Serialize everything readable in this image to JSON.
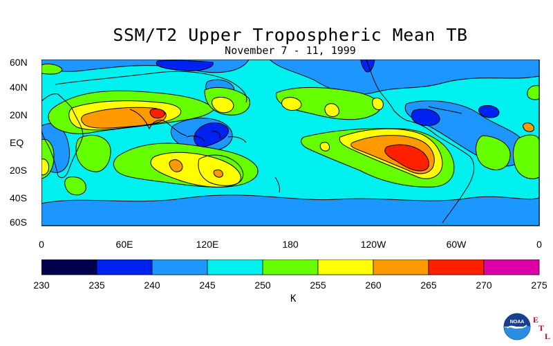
{
  "header": {
    "title": "SSM/T2 Upper Tropospheric Mean TB",
    "subtitle": "November 7 - 11, 1999"
  },
  "map": {
    "lat_labels": [
      "60N",
      "40N",
      "20N",
      "EQ",
      "20S",
      "40S",
      "60S"
    ],
    "lon_labels": [
      "0",
      "60E",
      "120E",
      "180",
      "120W",
      "60W",
      "0"
    ],
    "lat_range": [
      -60,
      60
    ],
    "lon_range": [
      0,
      360
    ]
  },
  "colorbar": {
    "unit": "K",
    "ticks": [
      "230",
      "235",
      "240",
      "245",
      "250",
      "255",
      "260",
      "265",
      "270",
      "275"
    ],
    "colors": [
      "#00004d",
      "#0022f0",
      "#1e96ff",
      "#00f0f0",
      "#66ff00",
      "#ffff00",
      "#ff9900",
      "#ff2000",
      "#e000a8"
    ]
  },
  "logo": {
    "text": "NOAA",
    "letters": [
      "E",
      "T",
      "L"
    ]
  }
}
